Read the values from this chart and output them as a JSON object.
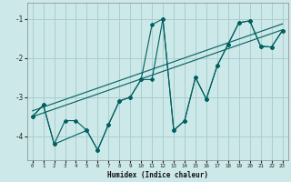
{
  "xlabel": "Humidex (Indice chaleur)",
  "background_color": "#cce8e8",
  "grid_color": "#aacece",
  "line_color": "#006060",
  "xlim": [
    -0.5,
    23.5
  ],
  "ylim": [
    -4.6,
    -0.6
  ],
  "yticks": [
    -4,
    -3,
    -2,
    -1
  ],
  "xticks": [
    0,
    1,
    2,
    3,
    4,
    5,
    6,
    7,
    8,
    9,
    10,
    11,
    12,
    13,
    14,
    15,
    16,
    17,
    18,
    19,
    20,
    21,
    22,
    23
  ],
  "series1_x": [
    0,
    1,
    2,
    3,
    4,
    5,
    6,
    7,
    8,
    9,
    10,
    11,
    12,
    13,
    14,
    15,
    16,
    17,
    18,
    19,
    20,
    21,
    22,
    23
  ],
  "series1_y": [
    -3.5,
    -3.2,
    -4.2,
    -3.6,
    -3.6,
    -3.85,
    -4.35,
    -3.7,
    -3.1,
    -3.0,
    -2.55,
    -1.15,
    -1.0,
    -3.85,
    -3.6,
    -2.5,
    -3.05,
    -2.2,
    -1.65,
    -1.1,
    -1.05,
    -1.7,
    -1.72,
    -1.3
  ],
  "series2_x": [
    0,
    1,
    2,
    5,
    6,
    7,
    8,
    9,
    10,
    11,
    12,
    13,
    14,
    15,
    16,
    17,
    18,
    19,
    20,
    21,
    22,
    23
  ],
  "series2_y": [
    -3.5,
    -3.2,
    -4.2,
    -3.85,
    -4.35,
    -3.7,
    -3.1,
    -3.0,
    -2.55,
    -2.55,
    -1.0,
    -3.85,
    -3.6,
    -2.5,
    -3.05,
    -2.2,
    -1.65,
    -1.1,
    -1.05,
    -1.7,
    -1.72,
    -1.3
  ],
  "trend1_x": [
    0,
    23
  ],
  "trend1_y": [
    -3.5,
    -1.28
  ],
  "trend2_x": [
    0,
    23
  ],
  "trend2_y": [
    -3.35,
    -1.13
  ]
}
